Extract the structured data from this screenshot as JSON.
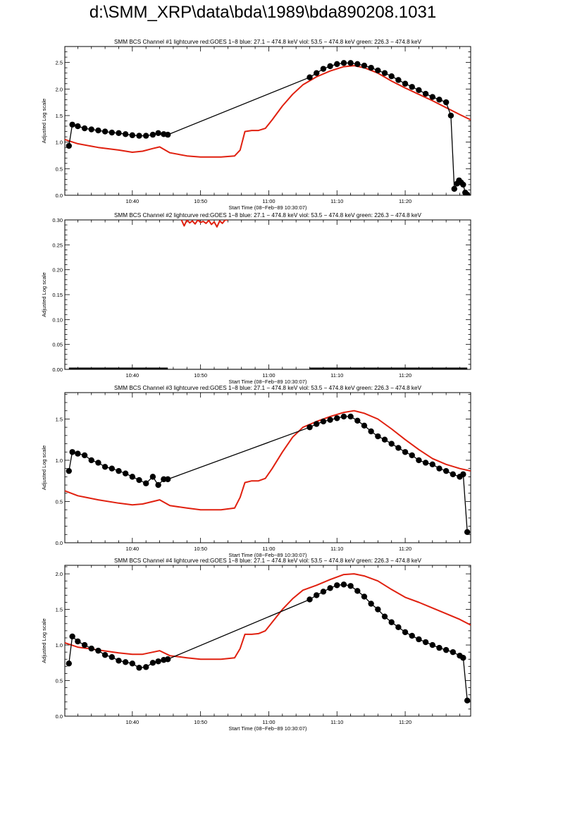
{
  "page": {
    "title": "d:\\SMM_XRP\\data\\bda\\1989\\bda890208.1031"
  },
  "colors": {
    "goes": "#e0200f",
    "bcs": "#000000",
    "axis": "#000000"
  },
  "chart_data": [
    {
      "type": "line",
      "title": "SMM BCS Channel #1 lightcurve  red:GOES 1−8  blue: 27.1 − 474.8 keV  viol: 53.5 − 474.8 keV  green: 226.3 − 474.8 keV",
      "xlabel": "Start Time (08−Feb−89 10:30:07)",
      "ylabel": "Adjusted Log scale",
      "xlim": [
        30.1,
        89.6
      ],
      "ylim": [
        0,
        2.8
      ],
      "xticks": [
        {
          "v": 40,
          "label": "10:40"
        },
        {
          "v": 50,
          "label": "10:50"
        },
        {
          "v": 60,
          "label": "11:00"
        },
        {
          "v": 70,
          "label": "11:10"
        },
        {
          "v": 80,
          "label": "11:20"
        }
      ],
      "yticks": [
        {
          "v": 0,
          "label": "0.0"
        },
        {
          "v": 0.5,
          "label": "0.5"
        },
        {
          "v": 1.0,
          "label": "1.0"
        },
        {
          "v": 1.5,
          "label": "1.5"
        },
        {
          "v": 2.0,
          "label": "2.0"
        },
        {
          "v": 2.5,
          "label": "2.5"
        }
      ],
      "series": [
        {
          "name": "GOES 1-8",
          "color": "red",
          "x": [
            30.1,
            32,
            35,
            38,
            40,
            41.5,
            43,
            44,
            45.5,
            48,
            50,
            53,
            55,
            55.8,
            56.5,
            57.5,
            58.5,
            59.5,
            60.5,
            62,
            63.5,
            65,
            67,
            69,
            71,
            72.5,
            74,
            76,
            78,
            80,
            82,
            84,
            86,
            88,
            89.6
          ],
          "values": [
            1.05,
            0.97,
            0.9,
            0.85,
            0.81,
            0.83,
            0.88,
            0.91,
            0.8,
            0.74,
            0.72,
            0.72,
            0.74,
            0.85,
            1.2,
            1.22,
            1.22,
            1.26,
            1.42,
            1.68,
            1.9,
            2.08,
            2.23,
            2.34,
            2.42,
            2.44,
            2.4,
            2.3,
            2.15,
            2.02,
            1.9,
            1.78,
            1.65,
            1.52,
            1.42
          ]
        },
        {
          "name": "BCS 27.1-474.8 keV",
          "color": "black",
          "markers": true,
          "x": [
            30.7,
            31.2,
            32,
            33,
            34,
            35,
            36,
            37,
            38,
            39,
            40,
            41,
            42,
            43,
            43.8,
            44.6,
            45.2,
            66,
            67,
            68,
            69,
            70,
            71,
            72,
            73,
            74,
            75,
            76,
            77,
            78,
            79,
            80,
            81,
            82,
            83,
            84,
            85,
            86,
            86.7,
            87.2,
            87.6,
            87.9,
            88.2,
            88.5,
            88.8,
            89.1
          ],
          "values": [
            0.93,
            1.33,
            1.3,
            1.26,
            1.24,
            1.22,
            1.2,
            1.18,
            1.17,
            1.15,
            1.13,
            1.12,
            1.12,
            1.14,
            1.17,
            1.15,
            1.14,
            2.22,
            2.3,
            2.38,
            2.43,
            2.47,
            2.49,
            2.49,
            2.47,
            2.44,
            2.4,
            2.35,
            2.3,
            2.24,
            2.17,
            2.1,
            2.04,
            1.98,
            1.91,
            1.85,
            1.8,
            1.75,
            1.5,
            0.12,
            0.22,
            0.28,
            0.24,
            0.2,
            0.05,
            0.01
          ]
        }
      ]
    },
    {
      "type": "line",
      "title": "SMM BCS Channel #2 lightcurve  red:GOES 1−8  blue: 27.1 − 474.8 keV  viol: 53.5 − 474.8 keV  green: 226.3 − 474.8 keV",
      "xlabel": "Start Time (08−Feb−89 10:30:07)",
      "ylabel": "Adjusted Log scale",
      "xlim": [
        30.1,
        89.6
      ],
      "ylim": [
        0,
        0.3
      ],
      "xticks": [
        {
          "v": 40,
          "label": "10:40"
        },
        {
          "v": 50,
          "label": "10:50"
        },
        {
          "v": 60,
          "label": "11:00"
        },
        {
          "v": 70,
          "label": "11:10"
        },
        {
          "v": 80,
          "label": "11:20"
        }
      ],
      "yticks": [
        {
          "v": 0,
          "label": "0.00"
        },
        {
          "v": 0.05,
          "label": "0.05"
        },
        {
          "v": 0.1,
          "label": "0.10"
        },
        {
          "v": 0.15,
          "label": "0.15"
        },
        {
          "v": 0.2,
          "label": "0.20"
        },
        {
          "v": 0.25,
          "label": "0.25"
        },
        {
          "v": 0.3,
          "label": "0.30"
        }
      ],
      "series": [
        {
          "name": "GOES 1-8",
          "color": "red",
          "x": [
            47.2,
            47.6,
            48,
            48.4,
            48.8,
            49.2,
            49.6,
            50,
            50.4,
            50.8,
            51.2,
            51.6,
            52,
            52.4,
            52.8,
            53.2,
            53.6,
            54
          ],
          "values": [
            0.3,
            0.288,
            0.3,
            0.294,
            0.298,
            0.292,
            0.3,
            0.295,
            0.297,
            0.293,
            0.299,
            0.291,
            0.296,
            0.286,
            0.298,
            0.293,
            0.3,
            0.3
          ]
        },
        {
          "name": "BCS 27.1-474.8 keV",
          "color": "black",
          "markers": true,
          "x": [
            30.7,
            45.2,
            66,
            89.1
          ],
          "values": [
            0,
            0,
            0,
            0
          ]
        }
      ]
    },
    {
      "type": "line",
      "title": "SMM BCS Channel #3 lightcurve  red:GOES 1−8  blue: 27.1 − 474.8 keV  viol: 53.5 − 474.8 keV  green: 226.3 − 474.8 keV",
      "xlabel": "Start Time (08−Feb−89 10:30:07)",
      "ylabel": "Adjusted Log scale",
      "xlim": [
        30.1,
        89.6
      ],
      "ylim": [
        0,
        1.82
      ],
      "xticks": [
        {
          "v": 40,
          "label": "10:40"
        },
        {
          "v": 50,
          "label": "10:50"
        },
        {
          "v": 60,
          "label": "11:00"
        },
        {
          "v": 70,
          "label": "11:10"
        },
        {
          "v": 80,
          "label": "11:20"
        }
      ],
      "yticks": [
        {
          "v": 0,
          "label": "0.0"
        },
        {
          "v": 0.5,
          "label": "0.5"
        },
        {
          "v": 1.0,
          "label": "1.0"
        },
        {
          "v": 1.5,
          "label": "1.5"
        }
      ],
      "series": [
        {
          "name": "GOES 1-8",
          "color": "red",
          "x": [
            30.1,
            32,
            35,
            38,
            40,
            41.5,
            43,
            44,
            45.5,
            48,
            50,
            53,
            55,
            55.8,
            56.5,
            57.5,
            58.5,
            59.5,
            60.5,
            62,
            63.5,
            65,
            67,
            69,
            71,
            72.5,
            74,
            76,
            78,
            80,
            82,
            84,
            86,
            88,
            89.6
          ],
          "values": [
            0.63,
            0.57,
            0.52,
            0.48,
            0.46,
            0.47,
            0.5,
            0.52,
            0.45,
            0.42,
            0.4,
            0.4,
            0.42,
            0.55,
            0.73,
            0.75,
            0.75,
            0.78,
            0.9,
            1.1,
            1.28,
            1.4,
            1.47,
            1.53,
            1.58,
            1.6,
            1.57,
            1.5,
            1.38,
            1.25,
            1.13,
            1.02,
            0.95,
            0.9,
            0.87
          ]
        },
        {
          "name": "BCS 27.1-474.8 keV",
          "color": "black",
          "markers": true,
          "x": [
            30.7,
            31.2,
            32,
            33,
            34,
            35,
            36,
            37,
            38,
            39,
            40,
            41,
            42,
            43,
            43.8,
            44.6,
            45.2,
            66,
            67,
            68,
            69,
            70,
            71,
            72,
            73,
            74,
            75,
            76,
            77,
            78,
            79,
            80,
            81,
            82,
            83,
            84,
            85,
            86,
            87,
            88,
            88.5,
            89.1
          ],
          "values": [
            0.87,
            1.1,
            1.08,
            1.06,
            1.0,
            0.97,
            0.92,
            0.9,
            0.87,
            0.84,
            0.8,
            0.76,
            0.72,
            0.8,
            0.7,
            0.77,
            0.77,
            1.4,
            1.44,
            1.47,
            1.49,
            1.51,
            1.53,
            1.53,
            1.48,
            1.42,
            1.35,
            1.29,
            1.25,
            1.2,
            1.15,
            1.1,
            1.06,
            1.0,
            0.97,
            0.95,
            0.9,
            0.87,
            0.83,
            0.8,
            0.83,
            0.13
          ]
        }
      ]
    },
    {
      "type": "line",
      "title": "SMM BCS Channel #4 lightcurve  red:GOES 1−8  blue: 27.1 − 474.8 keV  viol: 53.5 − 474.8 keV  green: 226.3 − 474.8 keV",
      "xlabel": "Start Time (08−Feb−89 10:30:07)",
      "ylabel": "Adjusted Log scale",
      "xlim": [
        30.1,
        89.6
      ],
      "ylim": [
        0,
        2.12
      ],
      "xticks": [
        {
          "v": 40,
          "label": "10:40"
        },
        {
          "v": 50,
          "label": "10:50"
        },
        {
          "v": 60,
          "label": "11:00"
        },
        {
          "v": 70,
          "label": "11:10"
        },
        {
          "v": 80,
          "label": "11:20"
        }
      ],
      "yticks": [
        {
          "v": 0,
          "label": "0.0"
        },
        {
          "v": 0.5,
          "label": "0.5"
        },
        {
          "v": 1.0,
          "label": "1.0"
        },
        {
          "v": 1.5,
          "label": "1.5"
        },
        {
          "v": 2.0,
          "label": "2.0"
        }
      ],
      "series": [
        {
          "name": "GOES 1-8",
          "color": "red",
          "x": [
            30.1,
            32,
            35,
            38,
            40,
            41.5,
            43,
            44,
            45.5,
            48,
            50,
            53,
            55,
            55.8,
            56.5,
            57.5,
            58.5,
            59.5,
            60.5,
            62,
            63.5,
            65,
            67,
            69,
            71,
            72.5,
            74,
            76,
            78,
            80,
            82,
            84,
            86,
            88,
            89.6
          ],
          "values": [
            1.03,
            0.97,
            0.93,
            0.89,
            0.87,
            0.87,
            0.9,
            0.92,
            0.85,
            0.82,
            0.8,
            0.8,
            0.82,
            0.95,
            1.15,
            1.15,
            1.16,
            1.2,
            1.32,
            1.5,
            1.65,
            1.77,
            1.84,
            1.92,
            1.99,
            2.0,
            1.97,
            1.9,
            1.78,
            1.67,
            1.6,
            1.52,
            1.44,
            1.36,
            1.28
          ]
        },
        {
          "name": "BCS 27.1-474.8 keV",
          "color": "black",
          "markers": true,
          "x": [
            30.7,
            31.2,
            32,
            33,
            34,
            35,
            36,
            37,
            38,
            39,
            40,
            41,
            42,
            43,
            43.8,
            44.6,
            45.2,
            66,
            67,
            68,
            69,
            70,
            71,
            72,
            73,
            74,
            75,
            76,
            77,
            78,
            79,
            80,
            81,
            82,
            83,
            84,
            85,
            86,
            87,
            88,
            88.5,
            89.1
          ],
          "values": [
            0.74,
            1.12,
            1.05,
            1.0,
            0.95,
            0.92,
            0.86,
            0.83,
            0.78,
            0.76,
            0.74,
            0.68,
            0.69,
            0.75,
            0.77,
            0.79,
            0.8,
            1.64,
            1.7,
            1.75,
            1.8,
            1.84,
            1.85,
            1.83,
            1.76,
            1.68,
            1.58,
            1.5,
            1.4,
            1.32,
            1.25,
            1.18,
            1.13,
            1.08,
            1.04,
            1.0,
            0.96,
            0.93,
            0.9,
            0.85,
            0.82,
            0.22
          ]
        }
      ]
    }
  ]
}
